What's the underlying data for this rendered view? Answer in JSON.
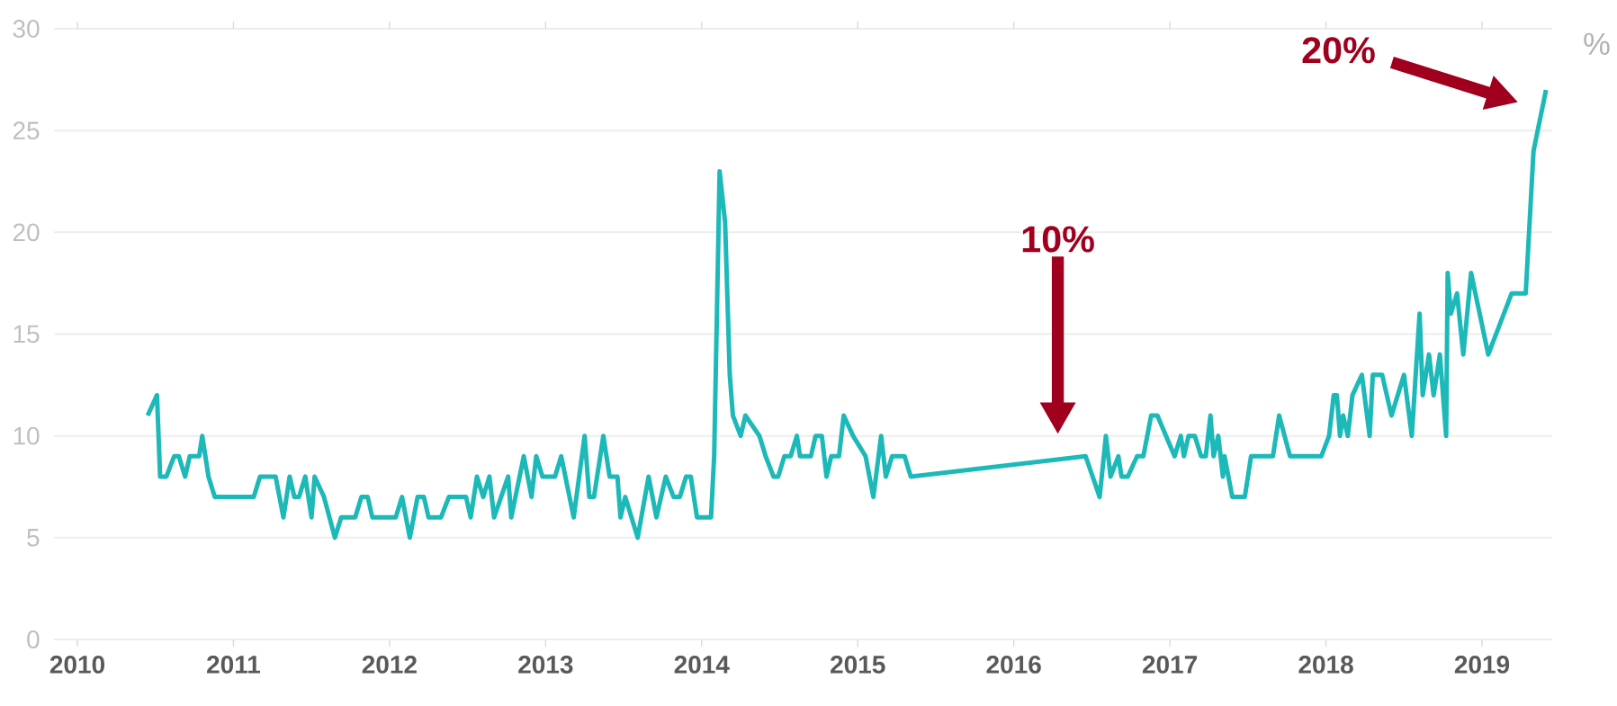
{
  "chart_data": {
    "type": "line",
    "ylabel": "%",
    "color": "#1db8b8",
    "x": [
      2010.45,
      2010.51,
      2010.53,
      2010.57,
      2010.62,
      2010.65,
      2010.69,
      2010.72,
      2010.78,
      2010.8,
      2010.84,
      2010.88,
      2011.13,
      2011.17,
      2011.27,
      2011.32,
      2011.36,
      2011.39,
      2011.42,
      2011.46,
      2011.5,
      2011.52,
      2011.58,
      2011.65,
      2011.69,
      2011.78,
      2011.82,
      2011.86,
      2011.89,
      2012.04,
      2012.08,
      2012.13,
      2012.18,
      2012.22,
      2012.25,
      2012.33,
      2012.38,
      2012.49,
      2012.52,
      2012.56,
      2012.6,
      2012.64,
      2012.67,
      2012.76,
      2012.78,
      2012.86,
      2012.91,
      2012.94,
      2012.98,
      2013.06,
      2013.1,
      2013.18,
      2013.25,
      2013.28,
      2013.31,
      2013.37,
      2013.41,
      2013.46,
      2013.48,
      2013.51,
      2013.59,
      2013.66,
      2013.71,
      2013.77,
      2013.82,
      2013.86,
      2013.9,
      2013.93,
      2013.97,
      2014.06,
      2014.08,
      2014.115,
      2014.15,
      2014.18,
      2014.2,
      2014.25,
      2014.28,
      2014.37,
      2014.41,
      2014.46,
      2014.49,
      2014.53,
      2014.57,
      2014.61,
      2014.63,
      2014.7,
      2014.73,
      2014.77,
      2014.8,
      2014.83,
      2014.88,
      2014.91,
      2014.97,
      2015.05,
      2015.1,
      2015.15,
      2015.18,
      2015.22,
      2015.3,
      2015.34,
      2016.46,
      2016.55,
      2016.59,
      2016.62,
      2016.67,
      2016.69,
      2016.73,
      2016.79,
      2016.83,
      2016.88,
      2016.92,
      2017.03,
      2017.07,
      2017.09,
      2017.12,
      2017.16,
      2017.2,
      2017.23,
      2017.26,
      2017.28,
      2017.31,
      2017.34,
      2017.35,
      2017.4,
      2017.48,
      2017.52,
      2017.66,
      2017.7,
      2017.77,
      2017.97,
      2018.02,
      2018.05,
      2018.07,
      2018.09,
      2018.11,
      2018.14,
      2018.17,
      2018.23,
      2018.28,
      2018.3,
      2018.36,
      2018.42,
      2018.5,
      2018.55,
      2018.6,
      2018.62,
      2018.66,
      2018.69,
      2018.73,
      2018.77,
      2018.78,
      2018.8,
      2018.84,
      2018.88,
      2018.93,
      2019.04,
      2019.19,
      2019.28,
      2019.33,
      2019.41
    ],
    "values": [
      11,
      12,
      8,
      8,
      9,
      9,
      8,
      9,
      9,
      10,
      8,
      7,
      7,
      8,
      8,
      6,
      8,
      7,
      7,
      8,
      6,
      8,
      7,
      5,
      6,
      6,
      7,
      7,
      6,
      6,
      7,
      5,
      7,
      7,
      6,
      6,
      7,
      7,
      6,
      8,
      7,
      8,
      6,
      8,
      6,
      9,
      7,
      9,
      8,
      8,
      9,
      6,
      10,
      7,
      7,
      10,
      8,
      8,
      6,
      7,
      5,
      8,
      6,
      8,
      7,
      7,
      8,
      8,
      6,
      6,
      9,
      23,
      20.5,
      13,
      11,
      10,
      11,
      10,
      9,
      8,
      8,
      9,
      9,
      10,
      9,
      9,
      10,
      10,
      8,
      9,
      9,
      11,
      10,
      9,
      7,
      10,
      8,
      9,
      9,
      8,
      9,
      7,
      10,
      8,
      9,
      8,
      8,
      9,
      9,
      11,
      11,
      9,
      10,
      9,
      10,
      10,
      9,
      9,
      11,
      9,
      10,
      8,
      9,
      7,
      7,
      9,
      9,
      11,
      9,
      9,
      10,
      12,
      12,
      10,
      11,
      10,
      12,
      13,
      10,
      13,
      13,
      11,
      13,
      10,
      16,
      12,
      14,
      12,
      14,
      10,
      18,
      16,
      17,
      14,
      18,
      14,
      17,
      17,
      24,
      27
    ],
    "xlim": [
      2009.85,
      2019.45
    ],
    "ylim": [
      0,
      30
    ],
    "xticks": [
      2010,
      2011,
      2012,
      2013,
      2014,
      2015,
      2016,
      2017,
      2018,
      2019
    ],
    "yticks": [
      0,
      5,
      10,
      15,
      20,
      25,
      30
    ],
    "grid": "y",
    "annotations": [
      "10%",
      "20%"
    ]
  }
}
